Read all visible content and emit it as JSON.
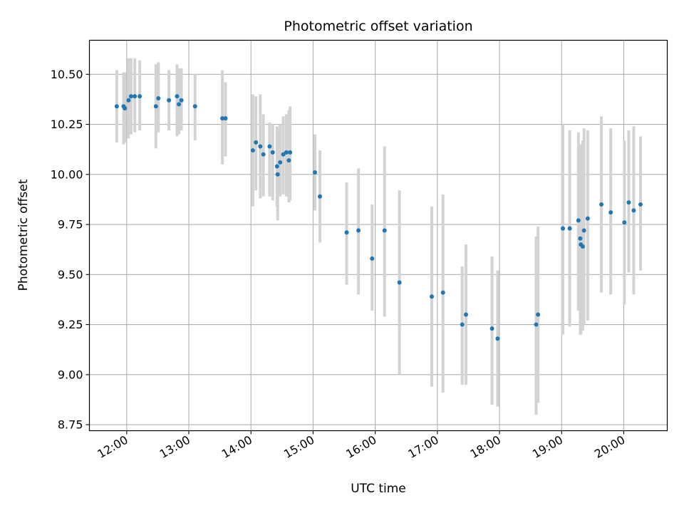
{
  "chart_data": {
    "type": "scatter",
    "title": "Photometric offset variation",
    "xlabel": "UTC time",
    "ylabel": "Photometric offset",
    "grid": true,
    "x_unit": "hours UTC",
    "xlim": [
      11.4,
      20.7
    ],
    "ylim": [
      8.72,
      10.67
    ],
    "x_ticks": [
      12,
      13,
      14,
      15,
      16,
      17,
      18,
      19,
      20
    ],
    "x_tick_labels": [
      "12:00",
      "13:00",
      "14:00",
      "15:00",
      "16:00",
      "17:00",
      "18:00",
      "19:00",
      "20:00"
    ],
    "y_ticks": [
      8.75,
      9.0,
      9.25,
      9.5,
      9.75,
      10.0,
      10.25,
      10.5
    ],
    "y_tick_labels": [
      "8.75",
      "9.00",
      "9.25",
      "9.50",
      "9.75",
      "10.00",
      "10.25",
      "10.50"
    ],
    "colors": {
      "points": "#1f77b4",
      "errorbars": "#d3d3d3",
      "grid": "#b0b0b0"
    },
    "series": [
      {
        "name": "offset",
        "x": [
          11.84,
          11.95,
          11.97,
          12.03,
          12.07,
          12.13,
          12.21,
          12.47,
          12.51,
          12.68,
          12.81,
          12.84,
          12.88,
          13.1,
          13.54,
          13.59,
          14.03,
          14.08,
          14.15,
          14.2,
          14.3,
          14.35,
          14.42,
          14.43,
          14.47,
          14.52,
          14.57,
          14.61,
          14.63,
          15.03,
          15.11,
          15.54,
          15.73,
          15.95,
          16.15,
          16.39,
          16.91,
          17.09,
          17.4,
          17.46,
          17.88,
          17.97,
          18.59,
          18.62,
          19.02,
          19.13,
          19.27,
          19.3,
          19.31,
          19.34,
          19.36,
          19.42,
          19.64,
          19.79,
          20.01,
          20.08,
          20.16,
          20.27
        ],
        "y": [
          10.34,
          10.34,
          10.33,
          10.37,
          10.39,
          10.39,
          10.39,
          10.34,
          10.38,
          10.37,
          10.39,
          10.35,
          10.37,
          10.34,
          10.28,
          10.28,
          10.12,
          10.16,
          10.14,
          10.1,
          10.14,
          10.11,
          10.04,
          10.0,
          10.06,
          10.1,
          10.11,
          10.07,
          10.11,
          10.01,
          9.89,
          9.71,
          9.72,
          9.58,
          9.72,
          9.46,
          9.39,
          9.41,
          9.25,
          9.3,
          9.23,
          9.18,
          9.25,
          9.3,
          9.73,
          9.73,
          9.77,
          9.68,
          9.65,
          9.64,
          9.72,
          9.78,
          9.85,
          9.81,
          9.76,
          9.86,
          9.82,
          9.85
        ],
        "yerr_low": [
          10.16,
          10.15,
          10.16,
          10.18,
          10.2,
          10.21,
          10.22,
          10.13,
          10.21,
          10.22,
          10.19,
          10.2,
          10.22,
          10.17,
          10.05,
          10.09,
          9.84,
          9.92,
          9.88,
          9.89,
          9.89,
          9.87,
          9.84,
          9.77,
          9.89,
          9.9,
          9.89,
          9.86,
          9.87,
          9.82,
          9.66,
          9.45,
          9.4,
          9.32,
          9.29,
          9.0,
          8.94,
          8.91,
          8.95,
          8.95,
          8.85,
          8.84,
          8.8,
          8.86,
          9.2,
          9.24,
          9.32,
          9.2,
          9.2,
          9.22,
          9.25,
          9.27,
          9.41,
          9.4,
          9.35,
          9.51,
          9.4,
          9.52
        ],
        "yerr_high": [
          10.52,
          10.51,
          10.51,
          10.58,
          10.58,
          10.58,
          10.57,
          10.55,
          10.56,
          10.52,
          10.55,
          10.53,
          10.53,
          10.5,
          10.52,
          10.46,
          10.4,
          10.39,
          10.4,
          10.3,
          10.26,
          10.25,
          10.24,
          10.23,
          10.25,
          10.29,
          10.3,
          10.32,
          10.34,
          10.2,
          10.12,
          9.96,
          10.03,
          9.85,
          10.14,
          9.92,
          9.84,
          9.9,
          9.54,
          9.65,
          9.59,
          9.52,
          9.69,
          9.74,
          10.25,
          10.22,
          10.21,
          10.13,
          10.15,
          10.17,
          10.23,
          10.22,
          10.29,
          10.23,
          10.17,
          10.22,
          10.24,
          10.19
        ]
      }
    ]
  }
}
